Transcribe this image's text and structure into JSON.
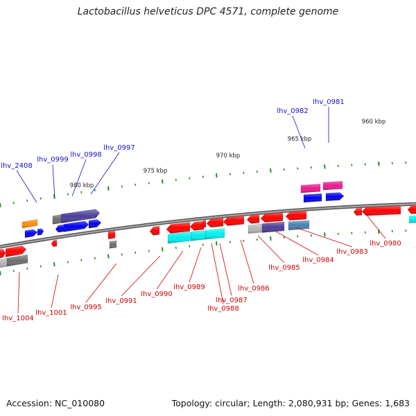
{
  "title": "Lactobacillus helveticus DPC 4571, complete genome",
  "footer": {
    "accession": "Accession: NC_010080",
    "summary": "Topology: circular; Length: 2,080,931 bp; Genes: 1,683"
  },
  "colors": {
    "red": "#ff0000",
    "blue": "#0000ee",
    "cyan": "#00f0f0",
    "slate": "#4a3f96",
    "steel": "#4682b4",
    "gray": "#6e6e6e",
    "lightgray": "#b4b4b4",
    "magenta": "#ee1890",
    "orange": "#ff8c00",
    "label_blue": "#1010cc",
    "label_red": "#cc0000",
    "ruler": "#2a8a2a",
    "backbone": "#808080"
  },
  "kbp_labels": [
    "960 kbp",
    "965 kbp",
    "970 kbp",
    "975 kbp",
    "980 kbp"
  ],
  "genes": [
    {
      "label": "lhv_2408",
      "color": "blue"
    },
    {
      "label": "lhv_0999",
      "color": "blue"
    },
    {
      "label": "lhv_0998",
      "color": "blue"
    },
    {
      "label": "lhv_0997",
      "color": "blue"
    },
    {
      "label": "lhv_0982",
      "color": "blue"
    },
    {
      "label": "lhv_0981",
      "color": "blue"
    },
    {
      "label": "lhv_1004",
      "color": "red"
    },
    {
      "label": "lhv_1001",
      "color": "red"
    },
    {
      "label": "lhv_0995",
      "color": "red"
    },
    {
      "label": "lhv_0991",
      "color": "red"
    },
    {
      "label": "lhv_0990",
      "color": "red"
    },
    {
      "label": "lhv_0989",
      "color": "red"
    },
    {
      "label": "lhv_0987",
      "color": "red"
    },
    {
      "label": "lhv_0988",
      "color": "red"
    },
    {
      "label": "lhv_0986",
      "color": "red"
    },
    {
      "label": "lhv_0985",
      "color": "red"
    },
    {
      "label": "lhv_0984",
      "color": "red"
    },
    {
      "label": "lhv_0983",
      "color": "red"
    },
    {
      "label": "lhv_0980",
      "color": "red"
    }
  ]
}
